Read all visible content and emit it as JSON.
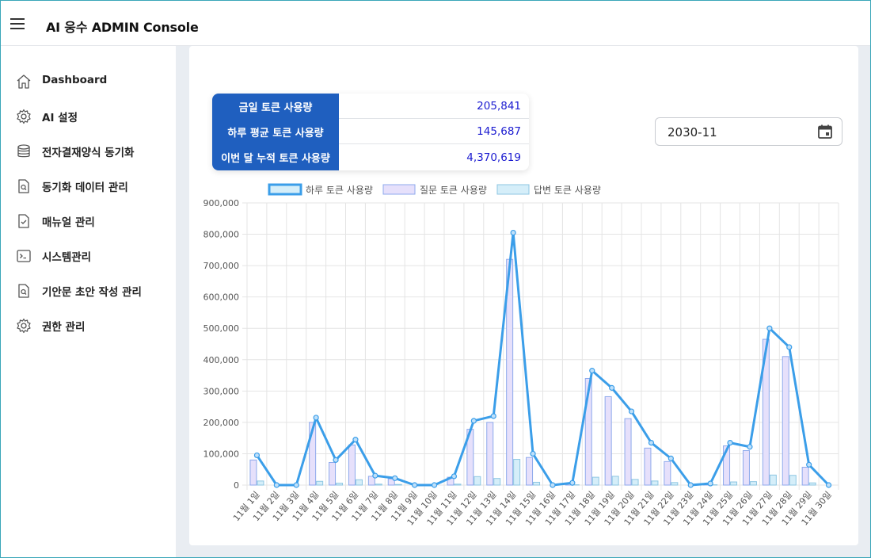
{
  "app": {
    "title": "AI 웅수 ADMIN Console"
  },
  "sidebar": {
    "items": [
      {
        "label": "Dashboard",
        "icon": "home-icon"
      },
      {
        "label": "AI 설정",
        "icon": "gear-icon"
      },
      {
        "label": "전자결재양식 동기화",
        "icon": "database-icon"
      },
      {
        "label": "동기화 데이터 관리",
        "icon": "document-search-icon"
      },
      {
        "label": "매뉴얼 관리",
        "icon": "document-check-icon"
      },
      {
        "label": "시스템관리",
        "icon": "terminal-icon"
      },
      {
        "label": "기안문 초안 작성 관리",
        "icon": "document-search-icon"
      },
      {
        "label": "권한 관리",
        "icon": "gear-icon"
      }
    ]
  },
  "stats": {
    "today_label": "금일 토큰 사용량",
    "today_value": "205,841",
    "avg_label": "하루 평균 토큰 사용량",
    "avg_value": "145,687",
    "month_label": "이번 달 누적 토큰 사용량",
    "month_value": "4,370,619"
  },
  "date_picker": {
    "value": "2030-11"
  },
  "chart_data": {
    "type": "bar",
    "categories": [
      "11월 1일",
      "11월 2일",
      "11월 3일",
      "11월 4일",
      "11월 5일",
      "11월 6일",
      "11월 7일",
      "11월 8일",
      "11월 9일",
      "11월 10일",
      "11월 11일",
      "11월 12일",
      "11월 13일",
      "11월 14일",
      "11월 15일",
      "11월 16일",
      "11월 17일",
      "11월 18일",
      "11월 19일",
      "11월 20일",
      "11월 21일",
      "11월 22일",
      "11월 23일",
      "11월 24일",
      "11월 25일",
      "11월 26일",
      "11월 27일",
      "11월 28일",
      "11월 29일",
      "11월 30일"
    ],
    "series": [
      {
        "name": "하루 토큰 사용량",
        "kind": "line",
        "color": "#3b9ee9",
        "values": [
          95000,
          0,
          0,
          215000,
          80000,
          145000,
          30000,
          22000,
          0,
          0,
          28000,
          205000,
          220000,
          805000,
          100000,
          0,
          7000,
          365000,
          310000,
          235000,
          135000,
          85000,
          0,
          5000,
          135000,
          122000,
          500000,
          440000,
          65000,
          0
        ]
      },
      {
        "name": "질문 토큰 사용량",
        "kind": "bar",
        "color": "#e6e0fb",
        "stroke": "#8da9ec",
        "values": [
          80000,
          0,
          0,
          200000,
          72000,
          128000,
          28000,
          20000,
          0,
          0,
          25000,
          178000,
          200000,
          720000,
          88000,
          0,
          6000,
          340000,
          282000,
          212000,
          118000,
          75000,
          0,
          4000,
          125000,
          110000,
          465000,
          410000,
          57000,
          0
        ]
      },
      {
        "name": "답변 토큰 사용량",
        "kind": "bar",
        "color": "#d5eef9",
        "stroke": "#8dc6e2",
        "values": [
          13000,
          0,
          0,
          12000,
          6000,
          17000,
          3000,
          2000,
          0,
          0,
          3000,
          27000,
          21000,
          82000,
          9000,
          0,
          1000,
          25000,
          28000,
          18000,
          13000,
          8000,
          0,
          1000,
          10000,
          11000,
          32000,
          31000,
          7000,
          0
        ]
      }
    ],
    "yticks": [
      "900,000",
      "800,000",
      "700,000",
      "600,000",
      "500,000",
      "400,000",
      "300,000",
      "200,000",
      "100,000",
      "0"
    ],
    "ylim": [
      0,
      900000
    ],
    "legend_position": "top",
    "grid": true
  }
}
